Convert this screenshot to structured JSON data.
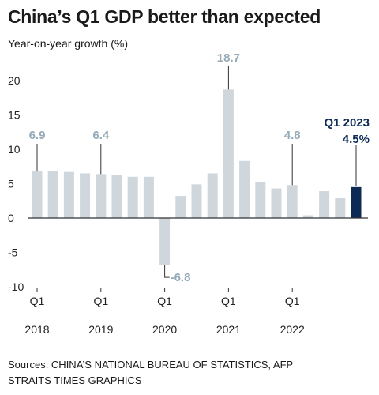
{
  "header": {
    "title": "China’s Q1 GDP better than expected",
    "subtitle": "Year-on-year growth (%)"
  },
  "footer": {
    "sources": "Sources: CHINA’S NATIONAL BUREAU OF STATISTICS, AFP",
    "graphics": "STRAITS TIMES GRAPHICS"
  },
  "colors": {
    "bar": "#cfd7dc",
    "highlight": "#0d2a55",
    "callout_text": "#95a9b7",
    "axis": "#333333"
  },
  "chart_data": {
    "type": "bar",
    "title": "China’s Q1 GDP better than expected",
    "ylabel": "Year-on-year growth (%)",
    "ylim": [
      -11,
      22
    ],
    "yticks": [
      -10,
      -5,
      0,
      5,
      10,
      15,
      20
    ],
    "ytick_labels": [
      "-10",
      "-5",
      "0",
      "5",
      "10",
      "15",
      "20"
    ],
    "grid": false,
    "categories": [
      "Q1 2018",
      "Q2 2018",
      "Q3 2018",
      "Q4 2018",
      "Q1 2019",
      "Q2 2019",
      "Q3 2019",
      "Q4 2019",
      "Q1 2020",
      "Q2 2020",
      "Q3 2020",
      "Q4 2020",
      "Q1 2021",
      "Q2 2021",
      "Q3 2021",
      "Q4 2021",
      "Q1 2022",
      "Q2 2022",
      "Q3 2022",
      "Q4 2022",
      "Q1 2023"
    ],
    "values": [
      6.9,
      6.9,
      6.7,
      6.5,
      6.4,
      6.2,
      6.0,
      6.0,
      -6.8,
      3.2,
      4.9,
      6.5,
      18.7,
      8.3,
      5.2,
      4.3,
      4.8,
      0.4,
      3.9,
      2.9,
      4.5
    ],
    "x_tick_labels": [
      {
        "index": 0,
        "quarter": "Q1",
        "year": "2018"
      },
      {
        "index": 4,
        "quarter": "Q1",
        "year": "2019"
      },
      {
        "index": 8,
        "quarter": "Q1",
        "year": "2020"
      },
      {
        "index": 12,
        "quarter": "Q1",
        "year": "2021"
      },
      {
        "index": 16,
        "quarter": "Q1",
        "year": "2022"
      }
    ],
    "highlight_index": 20,
    "annotations": [
      {
        "index": 0,
        "text": "6.9"
      },
      {
        "index": 4,
        "text": "6.4"
      },
      {
        "index": 8,
        "text": "-6.8"
      },
      {
        "index": 12,
        "text": "18.7"
      },
      {
        "index": 16,
        "text": "4.8"
      },
      {
        "index": 20,
        "text": "4.5%",
        "label": "Q1 2023"
      }
    ]
  }
}
